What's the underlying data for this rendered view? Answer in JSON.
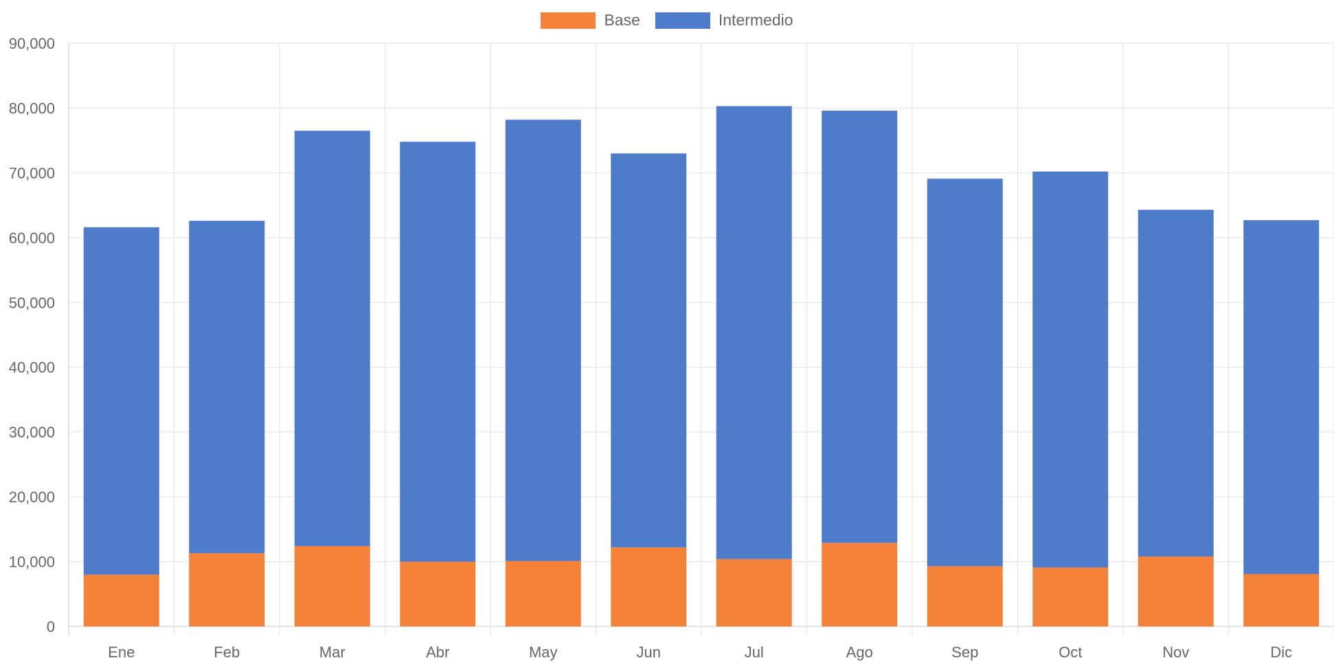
{
  "chart_data": {
    "type": "bar",
    "stacked": true,
    "categories": [
      "Ene",
      "Feb",
      "Mar",
      "Abr",
      "May",
      "Jun",
      "Jul",
      "Ago",
      "Sep",
      "Oct",
      "Nov",
      "Dic"
    ],
    "series": [
      {
        "name": "Base",
        "color": "#F58239",
        "values": [
          8000,
          11300,
          12400,
          10000,
          10100,
          12200,
          10400,
          12900,
          9300,
          9100,
          10800,
          8100
        ]
      },
      {
        "name": "Intermedio",
        "color": "#4F7BCB",
        "values": [
          53600,
          51300,
          64100,
          64800,
          68100,
          60800,
          69900,
          66700,
          59800,
          61100,
          53500,
          54600
        ]
      }
    ],
    "ylim": [
      0,
      90000
    ],
    "yticks": [
      "0",
      "10,000",
      "20,000",
      "30,000",
      "40,000",
      "50,000",
      "60,000",
      "70,000",
      "80,000",
      "90,000"
    ],
    "grid": true,
    "legend_position": "top"
  }
}
